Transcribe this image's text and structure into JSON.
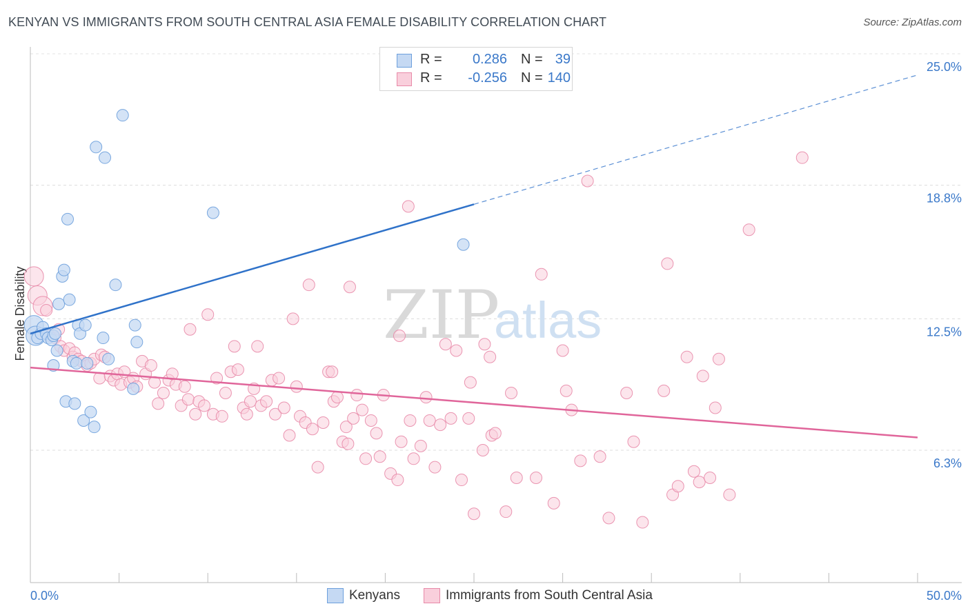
{
  "chart_data": {
    "type": "scatter",
    "title": "KENYAN VS IMMIGRANTS FROM SOUTH CENTRAL ASIA FEMALE DISABILITY CORRELATION CHART",
    "source": "Source: ZipAtlas.com",
    "watermark": {
      "zip": "ZIP",
      "atlas": "atlas"
    },
    "xlabel": "",
    "ylabel": "Female Disability",
    "xlim": [
      0,
      50
    ],
    "ylim": [
      0,
      26
    ],
    "x_tick_labels": {
      "min": "0.0%",
      "max": "50.0%"
    },
    "y_ticks": [
      {
        "value": 6.3,
        "label": "6.3%"
      },
      {
        "value": 12.5,
        "label": "12.5%"
      },
      {
        "value": 18.8,
        "label": "18.8%"
      },
      {
        "value": 25.0,
        "label": "25.0%"
      }
    ],
    "grid": true,
    "legend": {
      "position": "top-center",
      "r_label": "R =",
      "n_label": "N =",
      "entries": [
        {
          "name": "Kenyans",
          "r": "0.286",
          "n": "39"
        },
        {
          "name": "Immigrants from South Central Asia",
          "r": "-0.256",
          "n": "140"
        }
      ]
    },
    "series": [
      {
        "name": "Kenyans",
        "color": "#6c9fdc",
        "fill": "#c5d9f3",
        "trend": {
          "x_start": 0,
          "y_start": 11.8,
          "x_solid_end": 25,
          "x_end": 50,
          "y_end": 24.0,
          "color": "#2f72c9"
        },
        "points": [
          [
            0.2,
            12.2
          ],
          [
            0.3,
            11.7
          ],
          [
            0.4,
            11.6
          ],
          [
            0.6,
            11.8
          ],
          [
            0.7,
            12.1
          ],
          [
            0.9,
            11.8
          ],
          [
            1.0,
            11.6
          ],
          [
            1.2,
            11.5
          ],
          [
            1.3,
            11.7
          ],
          [
            1.4,
            11.8
          ],
          [
            1.5,
            11.0
          ],
          [
            1.3,
            10.3
          ],
          [
            1.6,
            13.2
          ],
          [
            1.8,
            14.5
          ],
          [
            1.9,
            14.8
          ],
          [
            2.1,
            17.2
          ],
          [
            2.2,
            13.4
          ],
          [
            2.0,
            8.6
          ],
          [
            2.5,
            8.5
          ],
          [
            2.4,
            10.5
          ],
          [
            2.6,
            10.4
          ],
          [
            2.7,
            12.2
          ],
          [
            2.8,
            11.8
          ],
          [
            3.1,
            12.2
          ],
          [
            3.2,
            10.4
          ],
          [
            3.0,
            7.7
          ],
          [
            3.4,
            8.1
          ],
          [
            3.6,
            7.4
          ],
          [
            3.7,
            20.6
          ],
          [
            4.2,
            20.1
          ],
          [
            4.1,
            11.6
          ],
          [
            4.4,
            10.6
          ],
          [
            4.8,
            14.1
          ],
          [
            5.2,
            22.1
          ],
          [
            5.9,
            12.2
          ],
          [
            6.0,
            11.4
          ],
          [
            5.8,
            9.2
          ],
          [
            10.3,
            17.5
          ],
          [
            24.4,
            16.0
          ]
        ]
      },
      {
        "name": "Immigrants from South Central Asia",
        "color": "#e889a8",
        "fill": "#f9cfdc",
        "trend": {
          "x_start": 0,
          "y_start": 10.2,
          "x_solid_end": 50,
          "x_end": 50,
          "y_end": 6.9,
          "color": "#e0659a"
        },
        "points": [
          [
            0.2,
            14.5
          ],
          [
            0.4,
            13.6
          ],
          [
            0.7,
            13.1
          ],
          [
            0.9,
            12.9
          ],
          [
            1.1,
            11.7
          ],
          [
            1.4,
            11.6
          ],
          [
            1.6,
            12.0
          ],
          [
            1.7,
            11.2
          ],
          [
            1.9,
            11.0
          ],
          [
            2.2,
            11.1
          ],
          [
            2.4,
            10.7
          ],
          [
            2.5,
            10.9
          ],
          [
            2.7,
            10.6
          ],
          [
            2.9,
            10.5
          ],
          [
            3.2,
            10.3
          ],
          [
            3.4,
            10.4
          ],
          [
            3.6,
            10.6
          ],
          [
            3.9,
            9.7
          ],
          [
            4.0,
            10.8
          ],
          [
            4.2,
            10.7
          ],
          [
            4.5,
            9.8
          ],
          [
            4.7,
            9.6
          ],
          [
            4.9,
            9.9
          ],
          [
            5.1,
            9.4
          ],
          [
            5.3,
            10.0
          ],
          [
            5.6,
            9.5
          ],
          [
            5.8,
            9.7
          ],
          [
            6.0,
            9.3
          ],
          [
            6.3,
            10.5
          ],
          [
            6.5,
            9.9
          ],
          [
            6.8,
            10.3
          ],
          [
            7.0,
            9.5
          ],
          [
            7.2,
            8.5
          ],
          [
            7.5,
            9.0
          ],
          [
            7.8,
            9.6
          ],
          [
            8.0,
            9.9
          ],
          [
            8.2,
            9.4
          ],
          [
            8.5,
            8.4
          ],
          [
            8.7,
            9.3
          ],
          [
            8.9,
            8.7
          ],
          [
            9.0,
            12.0
          ],
          [
            9.3,
            8.0
          ],
          [
            9.5,
            8.6
          ],
          [
            9.8,
            8.4
          ],
          [
            10.0,
            12.7
          ],
          [
            10.3,
            8.0
          ],
          [
            10.5,
            9.7
          ],
          [
            10.8,
            7.9
          ],
          [
            11.0,
            9.0
          ],
          [
            11.3,
            10.0
          ],
          [
            11.5,
            11.2
          ],
          [
            11.7,
            10.1
          ],
          [
            12.0,
            8.3
          ],
          [
            12.2,
            8.0
          ],
          [
            12.4,
            8.6
          ],
          [
            12.6,
            9.2
          ],
          [
            12.8,
            11.2
          ],
          [
            13.0,
            8.4
          ],
          [
            13.3,
            8.6
          ],
          [
            13.6,
            9.6
          ],
          [
            13.8,
            8.0
          ],
          [
            14.0,
            9.7
          ],
          [
            14.3,
            8.3
          ],
          [
            14.6,
            7.0
          ],
          [
            14.8,
            12.5
          ],
          [
            15.0,
            9.3
          ],
          [
            15.2,
            7.9
          ],
          [
            15.5,
            7.6
          ],
          [
            15.7,
            14.1
          ],
          [
            15.9,
            7.3
          ],
          [
            16.2,
            5.5
          ],
          [
            16.5,
            7.6
          ],
          [
            16.8,
            10.0
          ],
          [
            17.0,
            10.0
          ],
          [
            17.1,
            8.6
          ],
          [
            17.3,
            8.8
          ],
          [
            17.6,
            6.7
          ],
          [
            17.8,
            7.4
          ],
          [
            17.9,
            6.6
          ],
          [
            18.0,
            14.0
          ],
          [
            18.2,
            7.8
          ],
          [
            18.4,
            8.9
          ],
          [
            18.7,
            8.2
          ],
          [
            18.9,
            5.9
          ],
          [
            19.2,
            7.7
          ],
          [
            19.5,
            7.1
          ],
          [
            19.7,
            6.0
          ],
          [
            19.9,
            8.9
          ],
          [
            20.3,
            5.2
          ],
          [
            20.7,
            4.9
          ],
          [
            20.8,
            11.7
          ],
          [
            20.9,
            6.7
          ],
          [
            21.3,
            17.8
          ],
          [
            21.4,
            7.7
          ],
          [
            21.6,
            5.9
          ],
          [
            22.0,
            6.5
          ],
          [
            22.3,
            8.8
          ],
          [
            22.5,
            7.7
          ],
          [
            22.8,
            5.5
          ],
          [
            23.1,
            7.5
          ],
          [
            23.4,
            11.3
          ],
          [
            23.7,
            7.8
          ],
          [
            24.0,
            11.0
          ],
          [
            24.3,
            4.9
          ],
          [
            24.7,
            7.8
          ],
          [
            24.8,
            9.5
          ],
          [
            25.0,
            3.3
          ],
          [
            25.5,
            6.3
          ],
          [
            25.6,
            11.3
          ],
          [
            25.9,
            10.7
          ],
          [
            26.0,
            7.0
          ],
          [
            26.2,
            7.1
          ],
          [
            26.8,
            3.4
          ],
          [
            27.1,
            9.0
          ],
          [
            27.4,
            5.0
          ],
          [
            28.5,
            5.0
          ],
          [
            28.8,
            14.6
          ],
          [
            29.5,
            3.8
          ],
          [
            30.0,
            11.0
          ],
          [
            30.2,
            9.1
          ],
          [
            30.5,
            8.2
          ],
          [
            31.0,
            5.8
          ],
          [
            31.4,
            19.0
          ],
          [
            32.1,
            6.0
          ],
          [
            32.6,
            3.1
          ],
          [
            33.6,
            9.0
          ],
          [
            34.0,
            6.7
          ],
          [
            34.5,
            2.9
          ],
          [
            35.7,
            9.1
          ],
          [
            35.9,
            15.1
          ],
          [
            36.2,
            4.2
          ],
          [
            36.5,
            4.6
          ],
          [
            37.0,
            10.7
          ],
          [
            37.4,
            5.3
          ],
          [
            37.7,
            4.8
          ],
          [
            37.9,
            9.8
          ],
          [
            38.3,
            5.0
          ],
          [
            38.6,
            8.3
          ],
          [
            38.8,
            10.6
          ],
          [
            39.4,
            4.2
          ],
          [
            40.5,
            16.7
          ],
          [
            43.5,
            20.1
          ]
        ]
      }
    ],
    "colors": {
      "blue": "#2f72c9",
      "pink": "#e0659a",
      "axis_text": "#3a78c9",
      "grid": "#dcdcdc"
    }
  }
}
